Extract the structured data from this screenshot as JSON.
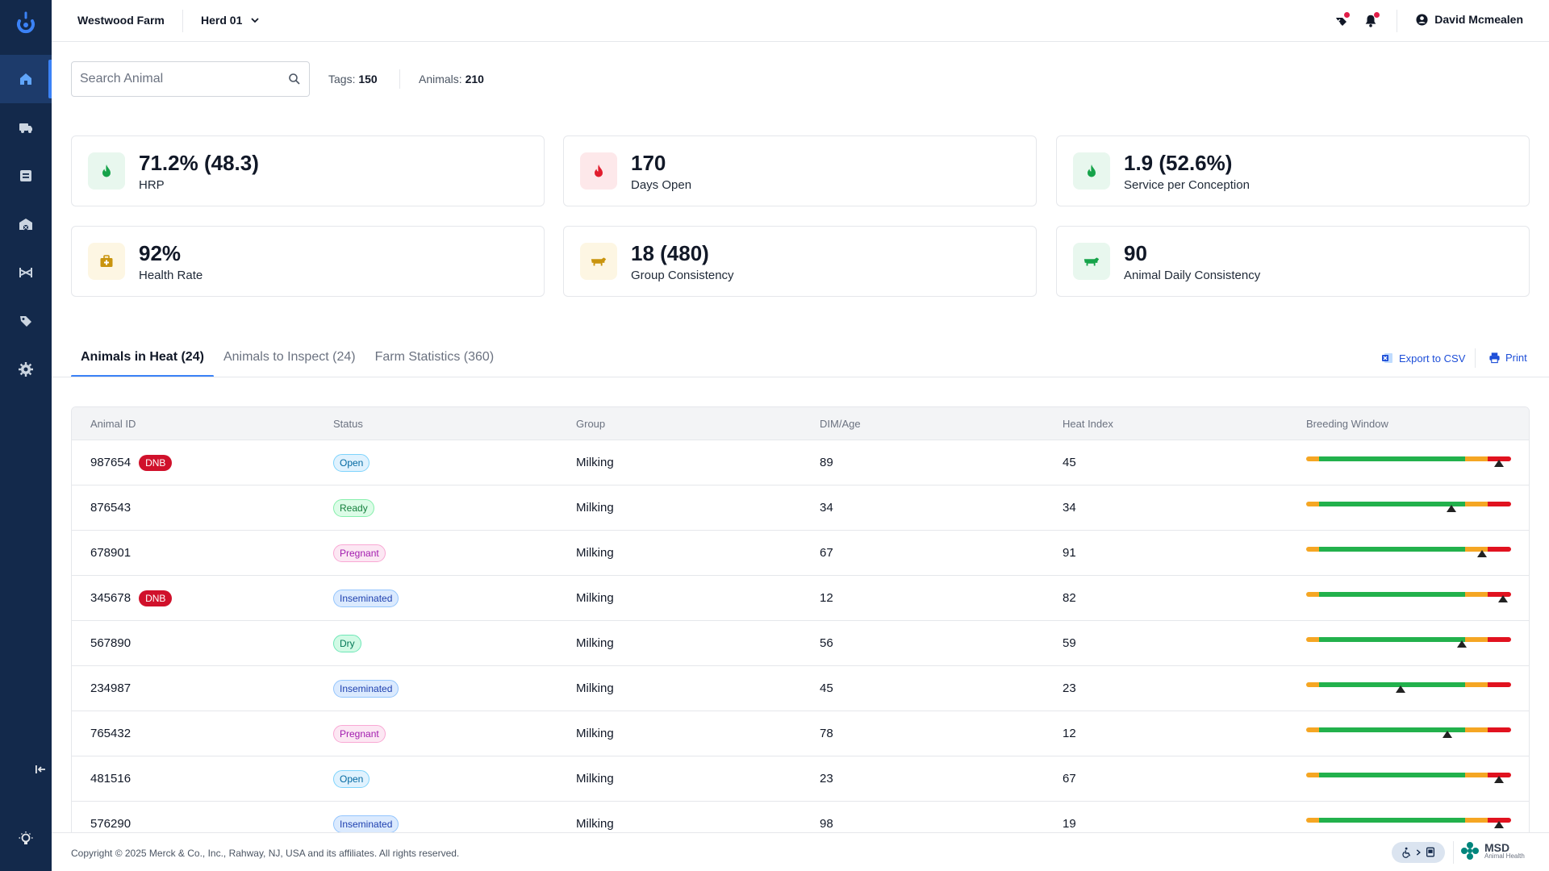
{
  "header": {
    "farm_name": "Westwood Farm",
    "herd": "Herd 01",
    "user_name": "David Mcmealen"
  },
  "sidebar": {
    "items": [
      {
        "icon": "home-icon",
        "active": true
      },
      {
        "icon": "truck-icon"
      },
      {
        "icon": "document-icon"
      },
      {
        "icon": "barn-icon"
      },
      {
        "icon": "bed-icon"
      },
      {
        "icon": "tag-icon"
      },
      {
        "icon": "settings-icon"
      }
    ]
  },
  "search": {
    "placeholder": "Search Animal",
    "tags_label": "Tags:",
    "tags_value": "150",
    "animals_label": "Animals:",
    "animals_value": "210"
  },
  "kpis": [
    {
      "value": "71.2% (48.3)",
      "label": "HRP",
      "icon": "flame-icon",
      "color": "#16a34a",
      "bg": "#e8f7ee"
    },
    {
      "value": "170",
      "label": "Days Open",
      "icon": "flame-icon",
      "color": "#e11d2e",
      "bg": "#fde8ea"
    },
    {
      "value": "1.9 (52.6%)",
      "label": "Service per Conception",
      "icon": "flame-icon",
      "color": "#16a34a",
      "bg": "#e8f7ee"
    },
    {
      "value": "92%",
      "label": "Health Rate",
      "icon": "medical-kit-icon",
      "color": "#d4a017",
      "bg": "#fdf6e3"
    },
    {
      "value": "18 (480)",
      "label": "Group Consistency",
      "icon": "cow-icon",
      "color": "#d4a017",
      "bg": "#fdf6e3"
    },
    {
      "value": "90",
      "label": "Animal Daily Consistency",
      "icon": "cow-icon",
      "color": "#16a34a",
      "bg": "#e8f7ee"
    }
  ],
  "tabs": [
    {
      "label": "Animals in Heat (24)",
      "active": true
    },
    {
      "label": "Animals to Inspect (24)"
    },
    {
      "label": "Farm Statistics (360)"
    }
  ],
  "actions": {
    "export_label": "Export to CSV",
    "print_label": "Print"
  },
  "table": {
    "columns": [
      "Animal ID",
      "Status",
      "Group",
      "DIM/Age",
      "Heat Index",
      "Breeding Window"
    ],
    "rows": [
      {
        "id": "987654",
        "dnb": true,
        "status": "Open",
        "group": "Milking",
        "dim": "89",
        "heat": "45",
        "window": 0.94
      },
      {
        "id": "876543",
        "dnb": false,
        "status": "Ready",
        "group": "Milking",
        "dim": "34",
        "heat": "34",
        "window": 0.71
      },
      {
        "id": "678901",
        "dnb": false,
        "status": "Pregnant",
        "group": "Milking",
        "dim": "67",
        "heat": "91",
        "window": 0.86
      },
      {
        "id": "345678",
        "dnb": true,
        "status": "Inseminated",
        "group": "Milking",
        "dim": "12",
        "heat": "82",
        "window": 0.96
      },
      {
        "id": "567890",
        "dnb": false,
        "status": "Dry",
        "group": "Milking",
        "dim": "56",
        "heat": "59",
        "window": 0.76
      },
      {
        "id": "234987",
        "dnb": false,
        "status": "Inseminated",
        "group": "Milking",
        "dim": "45",
        "heat": "23",
        "window": 0.46
      },
      {
        "id": "765432",
        "dnb": false,
        "status": "Pregnant",
        "group": "Milking",
        "dim": "78",
        "heat": "12",
        "window": 0.69
      },
      {
        "id": "481516",
        "dnb": false,
        "status": "Open",
        "group": "Milking",
        "dim": "23",
        "heat": "67",
        "window": 0.94
      },
      {
        "id": "576290",
        "dnb": false,
        "status": "Inseminated",
        "group": "Milking",
        "dim": "98",
        "heat": "19",
        "window": 0.94
      }
    ],
    "dnb_label": "DNB"
  },
  "footer": {
    "copyright": "Copyright © 2025 Merck & Co., Inc., Rahway, NJ, USA and its affiliates. All rights reserved.",
    "brand": "MSD",
    "brand_sub": "Animal Health"
  }
}
